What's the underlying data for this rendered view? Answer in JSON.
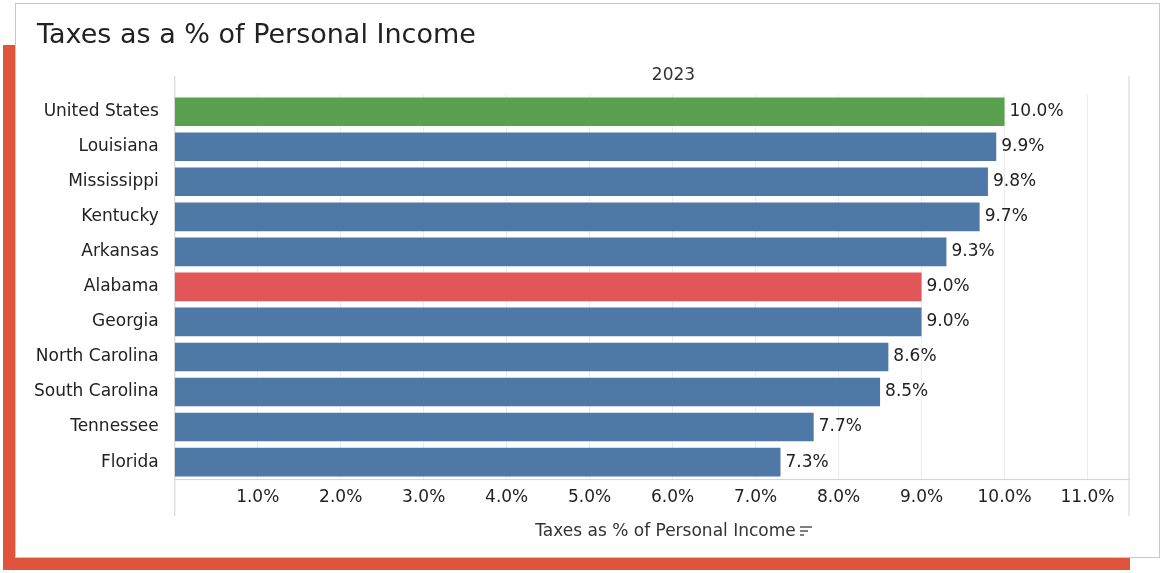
{
  "chart_data": {
    "type": "bar",
    "orientation": "horizontal",
    "title": "Taxes as a % of Personal Income",
    "subtitle": "2023",
    "xlabel": "Taxes as % of Personal Income",
    "categories": [
      "United States",
      "Louisiana",
      "Mississippi",
      "Kentucky",
      "Arkansas",
      "Alabama",
      "Georgia",
      "North Carolina",
      "South Carolina",
      "Tennessee",
      "Florida"
    ],
    "values": [
      10.0,
      9.9,
      9.8,
      9.7,
      9.3,
      9.0,
      9.0,
      8.6,
      8.5,
      7.7,
      7.3
    ],
    "colors": [
      "#59a14f",
      "#4e79a7",
      "#4e79a7",
      "#4e79a7",
      "#4e79a7",
      "#e15759",
      "#4e79a7",
      "#4e79a7",
      "#4e79a7",
      "#4e79a7",
      "#4e79a7"
    ],
    "value_labels": [
      "10.0%",
      "9.9%",
      "9.8%",
      "9.7%",
      "9.3%",
      "9.0%",
      "9.0%",
      "8.6%",
      "8.5%",
      "7.7%",
      "7.3%"
    ],
    "xlim": [
      0,
      11.5
    ],
    "xticks": [
      {
        "value": 1,
        "label": "1.0%"
      },
      {
        "value": 2,
        "label": "2.0%"
      },
      {
        "value": 3,
        "label": "3.0%"
      },
      {
        "value": 4,
        "label": "4.0%"
      },
      {
        "value": 5,
        "label": "5.0%"
      },
      {
        "value": 6,
        "label": "6.0%"
      },
      {
        "value": 7,
        "label": "7.0%"
      },
      {
        "value": 8,
        "label": "8.0%"
      },
      {
        "value": 9,
        "label": "9.0%"
      },
      {
        "value": 10,
        "label": "10.0%"
      },
      {
        "value": 11,
        "label": "11.0%"
      }
    ],
    "grid": "x"
  }
}
